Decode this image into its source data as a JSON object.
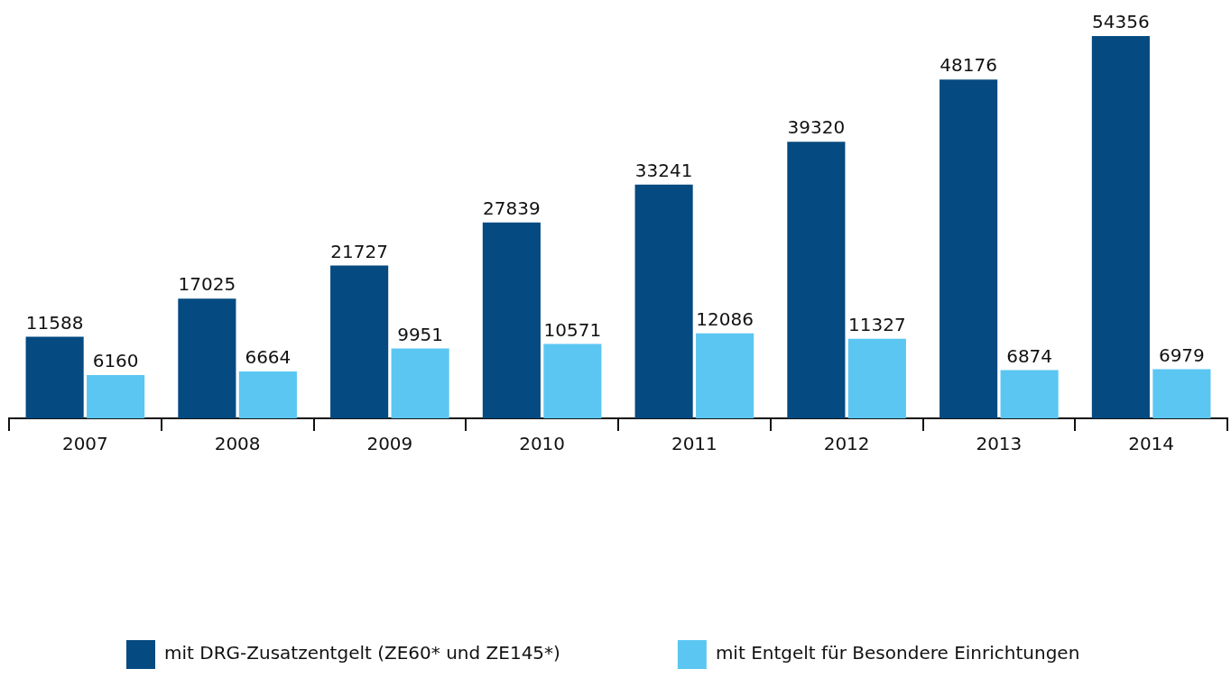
{
  "chart_data": {
    "type": "bar",
    "categories": [
      "2007",
      "2008",
      "2009",
      "2010",
      "2011",
      "2012",
      "2013",
      "2014"
    ],
    "series": [
      {
        "name": "mit DRG-Zusatzentgelt (ZE60* und ZE145*)",
        "color": "#054a80",
        "values": [
          11588,
          17025,
          21727,
          27839,
          33241,
          39320,
          48176,
          54356
        ]
      },
      {
        "name": "mit Entgelt für Besondere Einrichtungen",
        "color": "#5bc6f2",
        "values": [
          6160,
          6664,
          9951,
          10571,
          12086,
          11327,
          6874,
          6979
        ]
      }
    ],
    "data_labels": true,
    "grid": false,
    "legend": "bottom"
  }
}
